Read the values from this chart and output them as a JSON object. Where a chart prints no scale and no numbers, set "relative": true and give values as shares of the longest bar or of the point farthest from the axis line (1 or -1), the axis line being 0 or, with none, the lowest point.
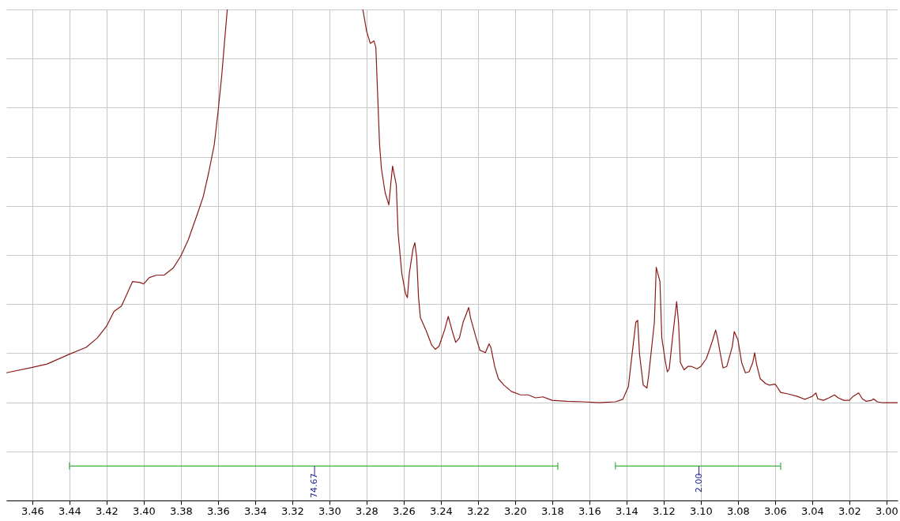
{
  "chart_data": {
    "type": "line",
    "relative": true,
    "grid": true,
    "xlim": [
      3.474,
      2.994
    ],
    "xticks": [
      3.46,
      3.44,
      3.42,
      {
        "value": 3.4,
        "label": "3.40"
      },
      3.38,
      3.36,
      3.34,
      3.32,
      {
        "value": 3.3,
        "label": "3.30"
      },
      3.28,
      3.26,
      3.24,
      3.22,
      {
        "value": 3.2,
        "label": "3.20"
      },
      3.18,
      3.16,
      3.14,
      3.12,
      {
        "value": 3.1,
        "label": "3.10"
      },
      3.08,
      3.06,
      3.04,
      3.02,
      {
        "value": 3,
        "label": "3.00"
      }
    ],
    "annotations": [
      {
        "text": "74.67",
        "x": 3.308,
        "y": 0.07
      },
      {
        "text": "2.00",
        "x": 3.101,
        "y": 0.07
      }
    ],
    "series": [
      {
        "color": "#3cb043",
        "x": [
          3.44,
          3.44,
          3.44,
          3.177,
          3.177,
          3.177
        ],
        "values": [
          0.063,
          0.077,
          0.07,
          0.07,
          0.063,
          0.077
        ]
      },
      {
        "color": "#3cb043",
        "x": [
          3.146,
          3.146,
          3.146,
          3.057,
          3.057,
          3.057
        ],
        "values": [
          0.063,
          0.077,
          0.07,
          0.07,
          0.063,
          0.077
        ]
      },
      {
        "color": "#8b1a1a",
        "x": [
          3.474,
          3.46,
          3.452,
          3.44,
          3.431,
          3.425,
          3.42,
          3.416,
          3.412,
          3.409,
          3.406,
          3.402,
          3.4,
          3.397,
          3.393,
          3.389,
          3.384,
          3.38,
          3.376,
          3.372,
          3.368,
          3.365,
          3.362,
          3.36,
          3.358,
          3.356,
          3.355,
          3.32,
          3.282,
          3.28,
          3.278,
          3.276,
          3.275,
          3.274,
          3.273,
          3.272,
          3.27,
          3.268,
          3.267,
          3.266,
          3.264,
          3.263,
          3.261,
          3.259,
          3.258,
          3.257,
          3.255,
          3.254,
          3.253,
          3.252,
          3.251,
          3.248,
          3.245,
          3.243,
          3.241,
          3.238,
          3.236,
          3.234,
          3.232,
          3.23,
          3.228,
          3.225,
          3.224,
          3.221,
          3.219,
          3.216,
          3.214,
          3.213,
          3.211,
          3.209,
          3.206,
          3.202,
          3.197,
          3.193,
          3.189,
          3.185,
          3.18,
          3.172,
          3.163,
          3.155,
          3.146,
          3.142,
          3.139,
          3.137,
          3.135,
          3.134,
          3.133,
          3.131,
          3.129,
          3.128,
          3.125,
          3.124,
          3.122,
          3.121,
          3.119,
          3.118,
          3.117,
          3.115,
          3.113,
          3.112,
          3.111,
          3.109,
          3.107,
          3.105,
          3.102,
          3.1,
          3.097,
          3.094,
          3.092,
          3.091,
          3.089,
          3.088,
          3.086,
          3.083,
          3.082,
          3.08,
          3.078,
          3.076,
          3.074,
          3.072,
          3.071,
          3.07,
          3.068,
          3.065,
          3.063,
          3.06,
          3.059,
          3.057,
          3.053,
          3.048,
          3.044,
          3.042,
          3.04,
          3.038,
          3.037,
          3.034,
          3.031,
          3.028,
          3.026,
          3.023,
          3.02,
          3.018,
          3.015,
          3.013,
          3.011,
          3.008,
          3.007,
          3.005,
          3.002,
          2.997,
          2.994
        ],
        "values": [
          0.26,
          0.271,
          0.278,
          0.298,
          0.312,
          0.331,
          0.355,
          0.385,
          0.396,
          0.421,
          0.446,
          0.444,
          0.441,
          0.454,
          0.459,
          0.459,
          0.474,
          0.498,
          0.531,
          0.574,
          0.618,
          0.668,
          0.725,
          0.791,
          0.865,
          0.956,
          1.0,
          null,
          1.0,
          0.956,
          0.931,
          0.936,
          0.923,
          0.824,
          0.725,
          0.676,
          0.627,
          0.602,
          0.643,
          0.681,
          0.643,
          0.544,
          0.462,
          0.421,
          0.413,
          0.462,
          0.512,
          0.525,
          0.495,
          0.413,
          0.372,
          0.347,
          0.317,
          0.308,
          0.314,
          0.347,
          0.375,
          0.347,
          0.322,
          0.331,
          0.363,
          0.393,
          0.372,
          0.331,
          0.306,
          0.301,
          0.319,
          0.311,
          0.273,
          0.248,
          0.235,
          0.222,
          0.215,
          0.215,
          0.209,
          0.211,
          0.204,
          0.202,
          0.201,
          0.199,
          0.201,
          0.206,
          0.232,
          0.298,
          0.363,
          0.367,
          0.298,
          0.235,
          0.229,
          0.257,
          0.363,
          0.475,
          0.446,
          0.331,
          0.281,
          0.262,
          0.268,
          0.339,
          0.405,
          0.363,
          0.281,
          0.266,
          0.273,
          0.273,
          0.268,
          0.273,
          0.289,
          0.322,
          0.347,
          0.331,
          0.289,
          0.27,
          0.273,
          0.314,
          0.344,
          0.327,
          0.281,
          0.26,
          0.262,
          0.281,
          0.301,
          0.278,
          0.248,
          0.238,
          0.235,
          0.237,
          0.232,
          0.22,
          0.217,
          0.212,
          0.206,
          0.209,
          0.212,
          0.219,
          0.207,
          0.204,
          0.209,
          0.215,
          0.209,
          0.204,
          0.204,
          0.212,
          0.219,
          0.207,
          0.202,
          0.204,
          0.207,
          0.201,
          0.199,
          0.199,
          0.199
        ]
      }
    ]
  }
}
